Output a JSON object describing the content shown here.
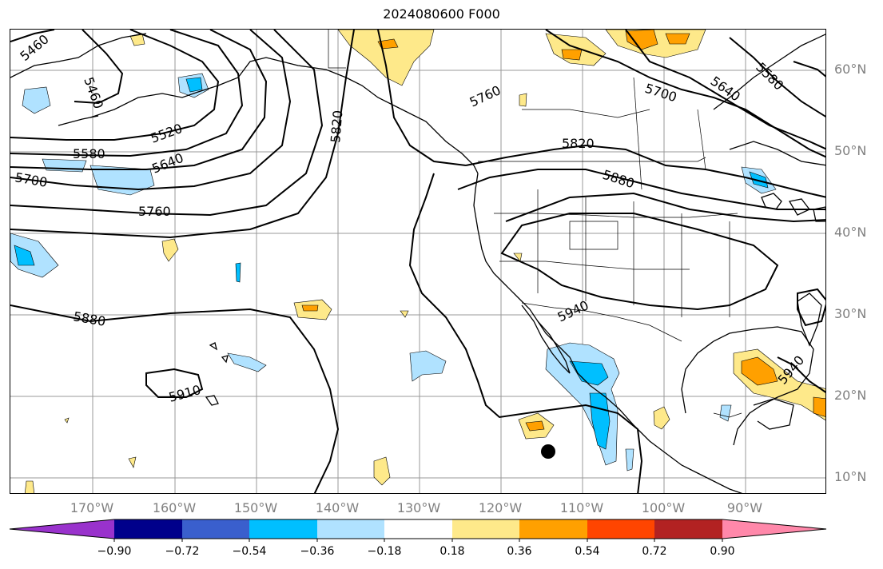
{
  "title": "2024080600 F000",
  "map": {
    "latitude_labels": [
      "60°N",
      "50°N",
      "40°N",
      "30°N",
      "20°N",
      "10°N"
    ],
    "longitude_labels": [
      "170°W",
      "160°W",
      "150°W",
      "140°W",
      "130°W",
      "120°W",
      "110°W",
      "100°W",
      "90°W"
    ],
    "contour_labels": [
      "5460",
      "5460",
      "5520",
      "5580",
      "5640",
      "5700",
      "5760",
      "5820",
      "5820",
      "5880",
      "5880",
      "5910",
      "5940",
      "5940",
      "5760",
      "5700",
      "5640",
      "5580"
    ]
  },
  "colorbar": {
    "ticks": [
      "−0.90",
      "−0.72",
      "−0.54",
      "−0.36",
      "−0.18",
      "0.18",
      "0.36",
      "0.54",
      "0.72",
      "0.90"
    ],
    "colors": [
      "#9932cc",
      "#00008b",
      "#3a5fcd",
      "#00bfff",
      "#b0e2ff",
      "#ffffff",
      "#fee98a",
      "#ffa000",
      "#ff4500",
      "#b22222",
      "#ff88aa"
    ]
  }
}
